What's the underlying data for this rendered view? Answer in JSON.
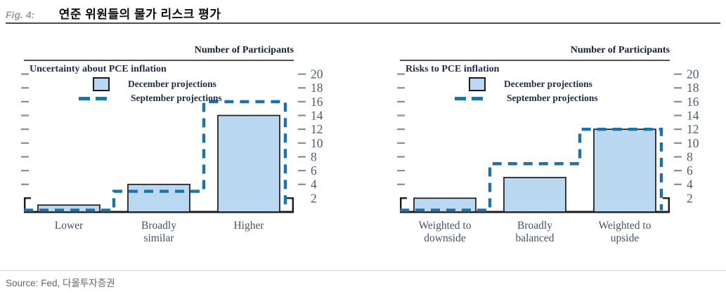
{
  "figure": {
    "label": "Fig. 4:",
    "title": "연준 위원들의 물가 리스크 평가",
    "source": "Source: Fed,  다올투자증권"
  },
  "colors": {
    "bar_fill": "#bad8f2",
    "bar_border": "#1b1b1b",
    "dashed_line": "#1a73ab",
    "frame": "#1b1b1b",
    "tick": "#8c8c8c",
    "axis_text": "#4a5b70",
    "category_text": "#42536a",
    "panel_text": "#1c2c4a"
  },
  "chart_data": [
    {
      "type": "bar",
      "panel_title": "Uncertainty about PCE inflation",
      "axis_title": "Number of Participants",
      "legend": {
        "december": "December projections",
        "september": "September projections"
      },
      "categories": [
        "Lower",
        "Broadly similar",
        "Higher"
      ],
      "series": [
        {
          "name": "December projections",
          "style": "bar",
          "values": [
            1,
            4,
            14
          ]
        },
        {
          "name": "September projections",
          "style": "dashed-step",
          "values": [
            0,
            3,
            16
          ]
        }
      ],
      "ylabel": "Number of Participants",
      "ylim": [
        0,
        22
      ],
      "yticks": [
        2,
        4,
        6,
        8,
        10,
        12,
        14,
        16,
        18,
        20
      ],
      "legend_position": "top-left",
      "grid": false
    },
    {
      "type": "bar",
      "panel_title": "Risks to PCE inflation",
      "axis_title": "Number of Participants",
      "legend": {
        "december": "December projections",
        "september": "September projections"
      },
      "categories": [
        "Weighted to downside",
        "Broadly balanced",
        "Weighted to upside"
      ],
      "series": [
        {
          "name": "December projections",
          "style": "bar",
          "values": [
            2,
            5,
            12
          ]
        },
        {
          "name": "September projections",
          "style": "dashed-step",
          "values": [
            0,
            7,
            12
          ]
        }
      ],
      "ylabel": "Number of Participants",
      "ylim": [
        0,
        22
      ],
      "yticks": [
        2,
        4,
        6,
        8,
        10,
        12,
        14,
        16,
        18,
        20
      ],
      "legend_position": "top-left",
      "grid": false
    }
  ]
}
